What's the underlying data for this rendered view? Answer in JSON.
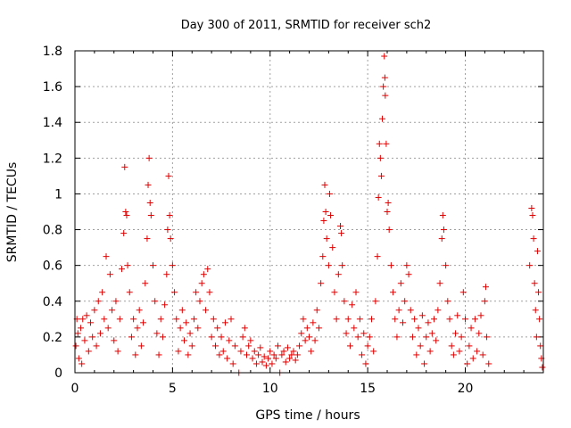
{
  "chart_data": {
    "type": "scatter",
    "title": "Day 300 of 2011, SRMTID for receiver sch2",
    "xlabel": "GPS time / hours",
    "ylabel": "SRMTID / TECUs",
    "xlim": [
      0,
      24
    ],
    "ylim": [
      0,
      1.8
    ],
    "xticks": [
      0,
      5,
      10,
      15,
      20
    ],
    "xtick_labels": [
      "0",
      "5",
      "10",
      "15",
      "20"
    ],
    "yticks": [
      0,
      0.2,
      0.4,
      0.6,
      0.8,
      1,
      1.2,
      1.4,
      1.6,
      1.8
    ],
    "ytick_labels": [
      "0",
      "0.2",
      "0.4",
      "0.6",
      "0.8",
      "1",
      "1.2",
      "1.4",
      "1.6",
      "1.8"
    ],
    "grid": true,
    "marker": "+",
    "color": "#e00000",
    "series": [
      {
        "name": "SRMTID",
        "points": [
          [
            0.05,
            0.15
          ],
          [
            0.1,
            0.3
          ],
          [
            0.15,
            0.22
          ],
          [
            0.2,
            0.08
          ],
          [
            0.3,
            0.25
          ],
          [
            0.35,
            0.05
          ],
          [
            0.4,
            0.3
          ],
          [
            0.5,
            0.18
          ],
          [
            0.6,
            0.32
          ],
          [
            0.7,
            0.12
          ],
          [
            0.8,
            0.28
          ],
          [
            0.9,
            0.2
          ],
          [
            1.0,
            0.35
          ],
          [
            1.1,
            0.15
          ],
          [
            1.2,
            0.4
          ],
          [
            1.3,
            0.22
          ],
          [
            1.4,
            0.45
          ],
          [
            1.5,
            0.3
          ],
          [
            1.6,
            0.65
          ],
          [
            1.7,
            0.25
          ],
          [
            1.8,
            0.55
          ],
          [
            1.9,
            0.35
          ],
          [
            2.0,
            0.18
          ],
          [
            2.1,
            0.4
          ],
          [
            2.2,
            0.12
          ],
          [
            2.3,
            0.3
          ],
          [
            2.4,
            0.58
          ],
          [
            2.5,
            0.78
          ],
          [
            2.55,
            1.15
          ],
          [
            2.6,
            0.9
          ],
          [
            2.65,
            0.88
          ],
          [
            2.7,
            0.6
          ],
          [
            2.8,
            0.45
          ],
          [
            2.9,
            0.2
          ],
          [
            3.0,
            0.3
          ],
          [
            3.1,
            0.1
          ],
          [
            3.2,
            0.25
          ],
          [
            3.3,
            0.35
          ],
          [
            3.4,
            0.15
          ],
          [
            3.5,
            0.28
          ],
          [
            3.6,
            0.5
          ],
          [
            3.7,
            0.75
          ],
          [
            3.75,
            1.05
          ],
          [
            3.8,
            1.2
          ],
          [
            3.85,
            0.95
          ],
          [
            3.9,
            0.88
          ],
          [
            4.0,
            0.6
          ],
          [
            4.1,
            0.4
          ],
          [
            4.2,
            0.22
          ],
          [
            4.3,
            0.1
          ],
          [
            4.4,
            0.3
          ],
          [
            4.5,
            0.2
          ],
          [
            4.6,
            0.38
          ],
          [
            4.7,
            0.55
          ],
          [
            4.75,
            0.8
          ],
          [
            4.8,
            1.1
          ],
          [
            4.85,
            0.88
          ],
          [
            4.9,
            0.75
          ],
          [
            5.0,
            0.6
          ],
          [
            5.1,
            0.45
          ],
          [
            5.2,
            0.3
          ],
          [
            5.3,
            0.12
          ],
          [
            5.4,
            0.25
          ],
          [
            5.5,
            0.35
          ],
          [
            5.6,
            0.18
          ],
          [
            5.7,
            0.28
          ],
          [
            5.8,
            0.1
          ],
          [
            5.9,
            0.22
          ],
          [
            6.0,
            0.15
          ],
          [
            6.1,
            0.3
          ],
          [
            6.2,
            0.45
          ],
          [
            6.3,
            0.25
          ],
          [
            6.4,
            0.4
          ],
          [
            6.5,
            0.5
          ],
          [
            6.6,
            0.55
          ],
          [
            6.7,
            0.35
          ],
          [
            6.8,
            0.58
          ],
          [
            6.9,
            0.45
          ],
          [
            7.0,
            0.2
          ],
          [
            7.1,
            0.3
          ],
          [
            7.2,
            0.15
          ],
          [
            7.3,
            0.25
          ],
          [
            7.4,
            0.1
          ],
          [
            7.5,
            0.2
          ],
          [
            7.6,
            0.12
          ],
          [
            7.7,
            0.28
          ],
          [
            7.8,
            0.08
          ],
          [
            7.9,
            0.18
          ],
          [
            8.0,
            0.3
          ],
          [
            8.1,
            0.05
          ],
          [
            8.2,
            0.15
          ],
          [
            8.4,
            0.0
          ],
          [
            8.5,
            0.12
          ],
          [
            8.6,
            0.2
          ],
          [
            8.7,
            0.25
          ],
          [
            8.8,
            0.1
          ],
          [
            8.9,
            0.15
          ],
          [
            9.0,
            0.18
          ],
          [
            9.1,
            0.08
          ],
          [
            9.2,
            0.12
          ],
          [
            9.3,
            0.05
          ],
          [
            9.4,
            0.1
          ],
          [
            9.5,
            0.14
          ],
          [
            9.6,
            0.06
          ],
          [
            9.7,
            0.09
          ],
          [
            9.8,
            0.04
          ],
          [
            9.9,
            0.08
          ],
          [
            10.0,
            0.12
          ],
          [
            10.1,
            0.05
          ],
          [
            10.2,
            0.1
          ],
          [
            10.3,
            0.08
          ],
          [
            10.4,
            0.15
          ],
          [
            10.5,
            0.0
          ],
          [
            10.6,
            0.1
          ],
          [
            10.7,
            0.12
          ],
          [
            10.8,
            0.06
          ],
          [
            10.9,
            0.14
          ],
          [
            11.0,
            0.08
          ],
          [
            11.1,
            0.1
          ],
          [
            11.2,
            0.12
          ],
          [
            11.3,
            0.07
          ],
          [
            11.4,
            0.1
          ],
          [
            11.5,
            0.15
          ],
          [
            11.6,
            0.22
          ],
          [
            11.7,
            0.3
          ],
          [
            11.8,
            0.18
          ],
          [
            11.9,
            0.25
          ],
          [
            12.0,
            0.2
          ],
          [
            12.1,
            0.12
          ],
          [
            12.2,
            0.28
          ],
          [
            12.3,
            0.18
          ],
          [
            12.4,
            0.35
          ],
          [
            12.5,
            0.25
          ],
          [
            12.6,
            0.5
          ],
          [
            12.7,
            0.65
          ],
          [
            12.75,
            0.85
          ],
          [
            12.8,
            1.05
          ],
          [
            12.85,
            0.9
          ],
          [
            12.9,
            0.75
          ],
          [
            13.0,
            0.6
          ],
          [
            13.05,
            1.0
          ],
          [
            13.1,
            0.88
          ],
          [
            13.2,
            0.7
          ],
          [
            13.3,
            0.45
          ],
          [
            13.4,
            0.3
          ],
          [
            13.5,
            0.55
          ],
          [
            13.6,
            0.82
          ],
          [
            13.65,
            0.78
          ],
          [
            13.7,
            0.6
          ],
          [
            13.8,
            0.4
          ],
          [
            13.9,
            0.22
          ],
          [
            14.0,
            0.3
          ],
          [
            14.1,
            0.15
          ],
          [
            14.2,
            0.38
          ],
          [
            14.3,
            0.25
          ],
          [
            14.4,
            0.45
          ],
          [
            14.5,
            0.2
          ],
          [
            14.6,
            0.3
          ],
          [
            14.7,
            0.1
          ],
          [
            14.8,
            0.22
          ],
          [
            14.9,
            0.05
          ],
          [
            15.0,
            0.15
          ],
          [
            15.1,
            0.2
          ],
          [
            15.2,
            0.3
          ],
          [
            15.3,
            0.12
          ],
          [
            15.4,
            0.4
          ],
          [
            15.5,
            0.65
          ],
          [
            15.55,
            0.98
          ],
          [
            15.6,
            1.28
          ],
          [
            15.65,
            1.2
          ],
          [
            15.7,
            1.1
          ],
          [
            15.75,
            1.42
          ],
          [
            15.8,
            1.6
          ],
          [
            15.85,
            1.77
          ],
          [
            15.88,
            1.65
          ],
          [
            15.9,
            1.55
          ],
          [
            15.95,
            1.28
          ],
          [
            16.0,
            0.9
          ],
          [
            16.05,
            0.95
          ],
          [
            16.1,
            0.8
          ],
          [
            16.2,
            0.6
          ],
          [
            16.3,
            0.45
          ],
          [
            16.4,
            0.3
          ],
          [
            16.5,
            0.2
          ],
          [
            16.6,
            0.35
          ],
          [
            16.7,
            0.5
          ],
          [
            16.8,
            0.28
          ],
          [
            16.9,
            0.4
          ],
          [
            17.0,
            0.6
          ],
          [
            17.1,
            0.55
          ],
          [
            17.2,
            0.35
          ],
          [
            17.3,
            0.2
          ],
          [
            17.4,
            0.3
          ],
          [
            17.5,
            0.1
          ],
          [
            17.6,
            0.25
          ],
          [
            17.7,
            0.15
          ],
          [
            17.8,
            0.32
          ],
          [
            17.9,
            0.05
          ],
          [
            18.0,
            0.2
          ],
          [
            18.1,
            0.28
          ],
          [
            18.2,
            0.12
          ],
          [
            18.3,
            0.22
          ],
          [
            18.4,
            0.3
          ],
          [
            18.5,
            0.18
          ],
          [
            18.6,
            0.35
          ],
          [
            18.7,
            0.5
          ],
          [
            18.8,
            0.75
          ],
          [
            18.85,
            0.88
          ],
          [
            18.9,
            0.8
          ],
          [
            19.0,
            0.6
          ],
          [
            19.1,
            0.4
          ],
          [
            19.2,
            0.3
          ],
          [
            19.3,
            0.15
          ],
          [
            19.4,
            0.1
          ],
          [
            19.5,
            0.22
          ],
          [
            19.6,
            0.32
          ],
          [
            19.7,
            0.12
          ],
          [
            19.8,
            0.2
          ],
          [
            19.9,
            0.45
          ],
          [
            20.0,
            0.3
          ],
          [
            20.1,
            0.05
          ],
          [
            20.2,
            0.15
          ],
          [
            20.3,
            0.25
          ],
          [
            20.4,
            0.08
          ],
          [
            20.5,
            0.3
          ],
          [
            20.6,
            0.12
          ],
          [
            20.7,
            0.22
          ],
          [
            20.8,
            0.32
          ],
          [
            20.9,
            0.1
          ],
          [
            21.0,
            0.4
          ],
          [
            21.05,
            0.48
          ],
          [
            21.1,
            0.2
          ],
          [
            21.2,
            0.05
          ],
          [
            23.3,
            0.6
          ],
          [
            23.4,
            0.92
          ],
          [
            23.45,
            0.88
          ],
          [
            23.5,
            0.75
          ],
          [
            23.55,
            0.5
          ],
          [
            23.6,
            0.35
          ],
          [
            23.65,
            0.2
          ],
          [
            23.7,
            0.68
          ],
          [
            23.75,
            0.45
          ],
          [
            23.8,
            0.3
          ],
          [
            23.85,
            0.15
          ],
          [
            23.9,
            0.08
          ],
          [
            23.95,
            0.03
          ]
        ]
      }
    ]
  }
}
